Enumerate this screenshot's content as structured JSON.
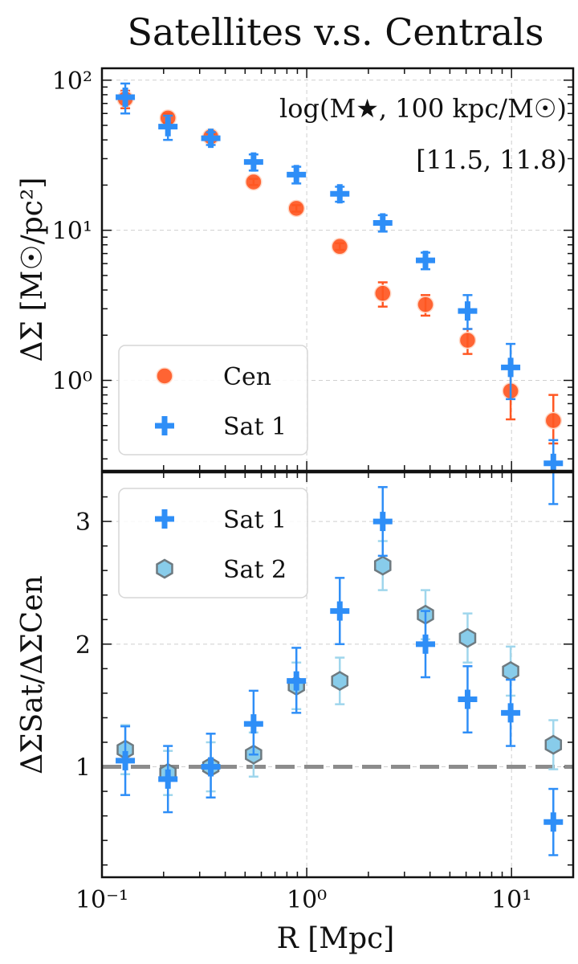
{
  "title": "Satellites v.s. Centrals",
  "chart_data": [
    {
      "type": "scatter",
      "panel": "top",
      "xscale": "log",
      "yscale": "log",
      "xlim": [
        0.1,
        20
      ],
      "ylim": [
        0.25,
        120
      ],
      "grid": true,
      "ylabel": "ΔΣ [M☉/pc²]",
      "xtick_labels": [
        "10⁻¹",
        "10⁰",
        "10¹"
      ],
      "ytick_labels": [
        "10⁰",
        "10¹",
        "10²"
      ],
      "annotation_line1": "log(M★, 100 kpc/M☉)",
      "annotation_line2": "[11.5, 11.8)",
      "legend": {
        "placement": "lower-left",
        "entries": [
          "Cen",
          "Sat 1"
        ]
      },
      "series": [
        {
          "name": "Cen",
          "marker": "circle",
          "color": "#ff5722",
          "x": [
            0.13,
            0.21,
            0.34,
            0.55,
            0.89,
            1.45,
            2.35,
            3.8,
            6.1,
            9.9,
            16.0
          ],
          "y": [
            75,
            56,
            42,
            21,
            14,
            7.8,
            3.8,
            3.2,
            1.85,
            0.85,
            0.54
          ],
          "ylo": [
            65,
            52,
            40,
            20,
            13.3,
            7.4,
            3.1,
            2.7,
            1.5,
            0.55,
            0.38
          ],
          "yhi": [
            85,
            60,
            44,
            22,
            14.7,
            8.2,
            4.5,
            3.7,
            2.2,
            1.2,
            0.8
          ]
        },
        {
          "name": "Sat 1",
          "marker": "plus",
          "color": "#2e8ef7",
          "x": [
            0.13,
            0.21,
            0.34,
            0.55,
            0.89,
            1.45,
            2.35,
            3.8,
            6.1,
            9.9,
            16.0
          ],
          "y": [
            77,
            49,
            41,
            28.5,
            23.5,
            17.5,
            11.2,
            6.3,
            2.9,
            1.22,
            0.28
          ],
          "ylo": [
            60,
            40,
            37,
            25,
            20.5,
            15.5,
            9.8,
            5.5,
            2.2,
            0.75,
            0.15
          ],
          "yhi": [
            95,
            58,
            45,
            32,
            26.5,
            19.5,
            12.6,
            7.1,
            3.7,
            1.75,
            0.4
          ]
        }
      ]
    },
    {
      "type": "scatter",
      "panel": "bottom",
      "xscale": "log",
      "xlim": [
        0.1,
        20
      ],
      "ylim": [
        0.1,
        3.4
      ],
      "grid": true,
      "xlabel": "R [Mpc]",
      "ylabel": "ΔΣSat/ΔΣCen",
      "xtick_labels": [
        "10⁻¹",
        "10⁰",
        "10¹"
      ],
      "yticks": [
        1,
        2,
        3
      ],
      "ytick_labels": [
        "1",
        "2",
        "3"
      ],
      "reference_line_y": 1.0,
      "legend": {
        "placement": "upper-left",
        "entries": [
          "Sat 1",
          "Sat 2"
        ]
      },
      "series": [
        {
          "name": "Sat 1",
          "marker": "plus",
          "color": "#2e8ef7",
          "x": [
            0.13,
            0.21,
            0.34,
            0.55,
            0.89,
            1.45,
            2.35,
            3.8,
            6.1,
            9.9,
            16.0
          ],
          "y": [
            1.05,
            0.9,
            1.0,
            1.35,
            1.7,
            2.27,
            3.0,
            2.0,
            1.55,
            1.44,
            0.55
          ],
          "ylo": [
            0.77,
            0.63,
            0.75,
            1.1,
            1.44,
            2.0,
            2.72,
            1.73,
            1.28,
            1.17,
            0.28
          ],
          "yhi": [
            1.33,
            1.17,
            1.27,
            1.62,
            1.97,
            2.54,
            3.28,
            2.27,
            1.82,
            1.71,
            0.82
          ]
        },
        {
          "name": "Sat 2",
          "marker": "hexagon",
          "color": "#88ccea",
          "x": [
            0.13,
            0.21,
            0.34,
            0.55,
            0.89,
            1.45,
            2.35,
            3.8,
            6.1,
            9.9,
            16.0
          ],
          "y": [
            1.14,
            0.95,
            1.0,
            1.1,
            1.66,
            1.7,
            2.64,
            2.24,
            2.05,
            1.78,
            1.18
          ],
          "ylo": [
            0.94,
            0.77,
            0.8,
            0.92,
            1.47,
            1.51,
            2.44,
            2.04,
            1.85,
            1.58,
            0.98
          ],
          "yhi": [
            1.34,
            1.13,
            1.2,
            1.28,
            1.85,
            1.89,
            2.84,
            2.44,
            2.25,
            1.98,
            1.38
          ]
        }
      ]
    }
  ]
}
